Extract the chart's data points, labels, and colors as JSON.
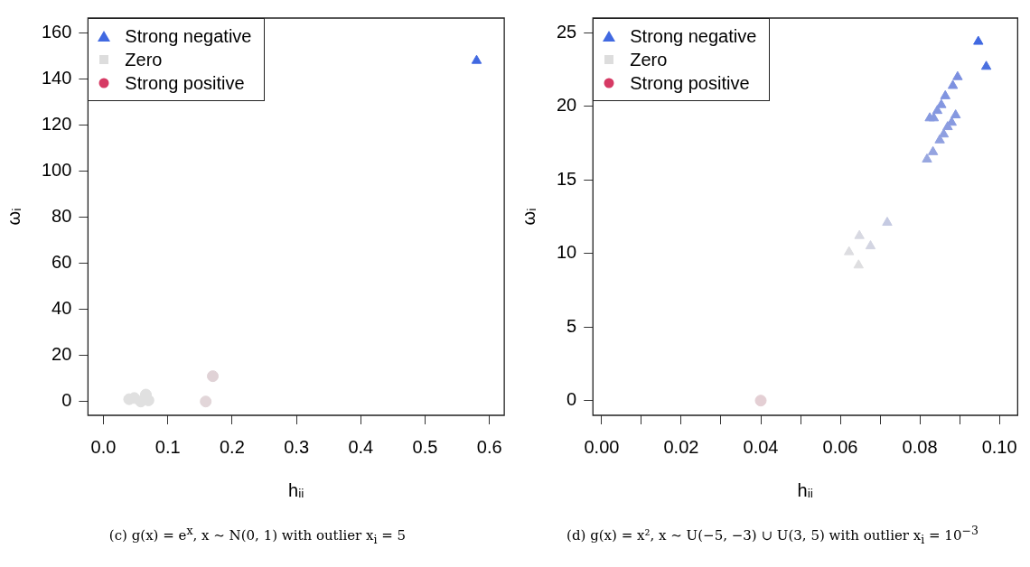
{
  "chart_data": [
    {
      "type": "scatter",
      "xlabel": "hᵢᵢ",
      "ylabel": "ωᵢ",
      "xlim": [
        -0.024,
        0.623
      ],
      "ylim": [
        -6,
        166.5
      ],
      "xticks": [
        {
          "value": 0,
          "label": "0.0"
        },
        0.1,
        0.2,
        0.3,
        0.4,
        0.5,
        0.6
      ],
      "yticks": [
        0,
        20,
        40,
        60,
        80,
        100,
        120,
        140,
        160
      ],
      "grid": false,
      "legend": "top left",
      "series": [
        {
          "name": "Strong negative",
          "color": "#4169e1",
          "marker": "triangle",
          "x": [
            0.58
          ],
          "values": [
            148
          ],
          "colors": [
            "#4169e1"
          ]
        },
        {
          "name": "Zero",
          "color": "#dddddd",
          "marker": "square"
        },
        {
          "name": "Strong positive",
          "color": "#d63a64",
          "marker": "circle"
        },
        {
          "marker": "circle",
          "x": [
            0.04,
            0.048,
            0.058,
            0.066,
            0.07,
            0.159,
            0.17
          ],
          "values": [
            1,
            1.5,
            0,
            3,
            0.5,
            0,
            11
          ],
          "colors": [
            "#e0e0e0",
            "#e0e0e0",
            "#e0e0e0",
            "#e0e0e0",
            "#e0e0e0",
            "#e2d6d9",
            "#e0d2d6"
          ]
        }
      ],
      "annotations": [
        "(c) g(x) = e$^{x}$, x ∼ N(0, 1) with outlier x$_{i}$ = 5"
      ]
    },
    {
      "type": "scatter",
      "xlabel": "hᵢᵢ",
      "ylabel": "ωᵢ",
      "xlim": [
        -0.0022,
        0.1046
      ],
      "ylim": [
        -1,
        26
      ],
      "xticks": [
        {
          "value": 0,
          "label": "0.00"
        },
        {
          "value": 0.01,
          "label": null
        },
        {
          "value": 0.02,
          "label": "0.02"
        },
        {
          "value": 0.03,
          "label": null
        },
        {
          "value": 0.04,
          "label": "0.04"
        },
        {
          "value": 0.05,
          "label": null
        },
        {
          "value": 0.06,
          "label": "0.06"
        },
        {
          "value": 0.07,
          "label": null
        },
        {
          "value": 0.08,
          "label": "0.08"
        },
        {
          "value": 0.09,
          "label": null
        },
        {
          "value": 0.1,
          "label": "0.10"
        }
      ],
      "yticks": [
        0,
        5,
        10,
        15,
        20,
        25
      ],
      "grid": false,
      "legend": "top left",
      "series": [
        {
          "name": "Strong negative",
          "color": "#4169e1",
          "marker": "triangle",
          "x": [
            0.0947,
            0.0967,
            0.0895,
            0.0883,
            0.0864,
            0.0854,
            0.0844,
            0.0835,
            0.0825,
            0.089,
            0.088,
            0.087,
            0.086,
            0.085,
            0.0833,
            0.0818,
            0.0718,
            0.0648,
            0.0676,
            0.0622,
            0.0646
          ],
          "values": [
            24.4,
            22.7,
            22.0,
            21.4,
            20.7,
            20.1,
            19.7,
            19.2,
            19.2,
            19.4,
            18.9,
            18.6,
            18.1,
            17.7,
            16.9,
            16.4,
            12.1,
            11.2,
            10.5,
            10.1,
            9.2
          ],
          "colors": [
            "#4169e1",
            "#4a70e0",
            "#7b8fe0",
            "#7d91e0",
            "#8094e0",
            "#8396e0",
            "#8598e0",
            "#879ae0",
            "#879ae0",
            "#8598e0",
            "#889ae0",
            "#8b9ce0",
            "#8e9fe0",
            "#90a0e0",
            "#95a4e0",
            "#98a7e0",
            "#c5cae2",
            "#d8d9e2",
            "#d3d5e2",
            "#dddde1",
            "#dedee0"
          ]
        },
        {
          "name": "Zero",
          "color": "#dddddd",
          "marker": "square"
        },
        {
          "name": "Strong positive",
          "color": "#d63a64",
          "marker": "circle"
        },
        {
          "marker": "circle",
          "x": [
            0.04
          ],
          "values": [
            0
          ],
          "colors": [
            "#e4cfd4"
          ]
        }
      ],
      "annotations": [
        "(d) g(x) = x², x ∼ U(−5, −3) ∪ U(3, 5) with outlier x$_{i}$ = 10$^{−3}$"
      ]
    }
  ]
}
